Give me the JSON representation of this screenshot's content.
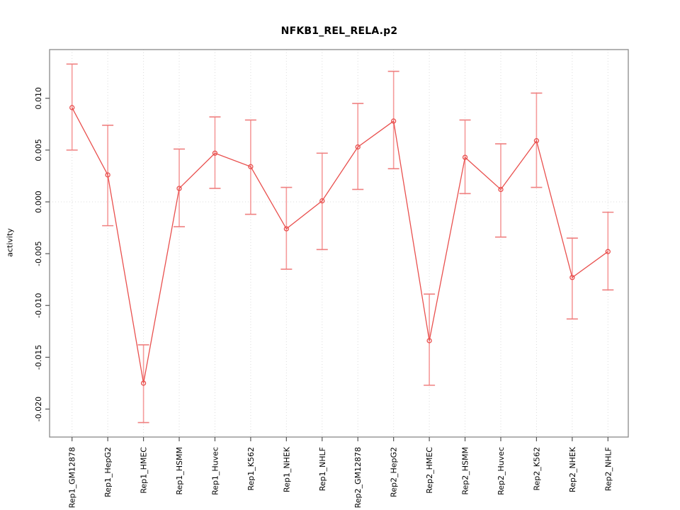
{
  "chart_data": {
    "type": "line",
    "title": "NFKB1_REL_RELA.p2",
    "xlabel": "",
    "ylabel": "activity",
    "ylim": [
      -0.0227,
      0.0147
    ],
    "yticks": [
      0.01,
      0.005,
      0.0,
      -0.005,
      -0.01,
      -0.015,
      -0.02
    ],
    "grid": {
      "vertical_per_category": true,
      "horizontal_zero_line": true,
      "style": "dotted"
    },
    "legend": "none",
    "marker": "open-circle",
    "categories": [
      "Rep1_GM12878",
      "Rep1_HepG2",
      "Rep1_HMEC",
      "Rep1_HSMM",
      "Rep1_Huvec",
      "Rep1_K562",
      "Rep1_NHEK",
      "Rep1_NHLF",
      "Rep2_GM12878",
      "Rep2_HepG2",
      "Rep2_HMEC",
      "Rep2_HSMM",
      "Rep2_Huvec",
      "Rep2_K562",
      "Rep2_NHEK",
      "Rep2_NHLF"
    ],
    "series": [
      {
        "name": "activity",
        "values": [
          0.0091,
          0.0026,
          -0.0175,
          0.0013,
          0.0047,
          0.0034,
          -0.0026,
          0.0001,
          0.0053,
          0.0078,
          -0.0134,
          0.0043,
          0.0012,
          0.0059,
          -0.0073,
          -0.0048
        ],
        "error_low": [
          0.005,
          -0.0023,
          -0.0213,
          -0.0024,
          0.0013,
          -0.0012,
          -0.0065,
          -0.0046,
          0.0012,
          0.0032,
          -0.0177,
          0.0008,
          -0.0034,
          0.0014,
          -0.0113,
          -0.0085
        ],
        "error_high": [
          0.0133,
          0.0074,
          -0.0138,
          0.0051,
          0.0082,
          0.0079,
          0.0014,
          0.0047,
          0.0095,
          0.0126,
          -0.0089,
          0.0079,
          0.0056,
          0.0105,
          -0.0035,
          -0.001
        ]
      }
    ],
    "colors": {
      "series_line": "#e9504e",
      "marker": "#e9504e",
      "error_bar": "#f59b9b",
      "error_cap": "#ef8080",
      "grid": "#dcdcdc",
      "box_border": "#8a8a8a",
      "tick": "#555555",
      "text": "#000000"
    }
  }
}
